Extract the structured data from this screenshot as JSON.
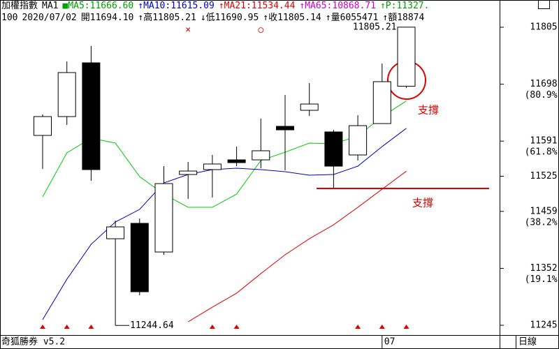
{
  "header": {
    "lines": [
      [
        {
          "text": "加權指數",
          "color": "#000000"
        },
        {
          "text": "MA1",
          "color": "#000000"
        },
        {
          "text": "■MA5:11666.60",
          "color": "#00a000"
        },
        {
          "text": "↑MA10:11615.09",
          "color": "#0000cc"
        },
        {
          "text": "↑MA21:11534.44",
          "color": "#e00000"
        },
        {
          "text": "↑MA65:10868.71",
          "color": "#cc00cc"
        },
        {
          "text": "↑P:11327.",
          "color": "#00a000"
        }
      ],
      [
        {
          "text": "100",
          "color": "#000000"
        },
        {
          "text": "2020/07/02",
          "color": "#000000"
        },
        {
          "text": "開11694.10",
          "color": "#000000"
        },
        {
          "text": "↑高11805.21",
          "color": "#000000"
        },
        {
          "text": "↓低11690.95",
          "color": "#000000"
        },
        {
          "text": "↑收11805.14",
          "color": "#000000"
        },
        {
          "text": "↑量6055471",
          "color": "#000000"
        },
        {
          "text": "↑額18874",
          "color": "#000000"
        }
      ]
    ]
  },
  "chart_data": {
    "type": "candlestick",
    "categories": [
      null,
      null,
      null,
      null,
      null,
      null,
      null,
      null,
      null,
      null,
      null,
      null,
      null,
      null,
      "07",
      null
    ],
    "open": [
      11601.7,
      11637.1,
      11738.1,
      11407.6,
      11436.5,
      11382.7,
      11528.3,
      11537.5,
      11555.8,
      11555.8,
      11618.8,
      11648.9,
      11608.3,
      11565.0,
      11624.0,
      11694.1
    ],
    "high": [
      11641.1,
      11740.7,
      11769.6,
      11441.7,
      11445.6,
      11544.0,
      11551.9,
      11565.0,
      11580.7,
      11633.2,
      11677.8,
      11700.1,
      11612.2,
      11639.7,
      11736.8,
      11805.21
    ],
    "low": [
      11538.8,
      11621.4,
      11516.5,
      11244.64,
      11301.4,
      11377.5,
      11482.4,
      11485.0,
      11544.0,
      11540.1,
      11536.1,
      11638.4,
      11502.0,
      11554.5,
      11624.0,
      11690.95
    ],
    "close": [
      11637.1,
      11719.8,
      11537.5,
      11429.9,
      11308.0,
      11511.2,
      11534.8,
      11548.0,
      11550.6,
      11572.9,
      11612.2,
      11660.7,
      11544.0,
      11620.1,
      11702.7,
      11805.14
    ],
    "up_color": "#ffffff",
    "down_color": "#000000",
    "ma": [
      {
        "color": "#00cc00",
        "values": [
          11486.3,
          11569.0,
          11596.5,
          11587.3,
          11524.3,
          11491.5,
          11466.6,
          11466.6,
          11491.5,
          11554.5,
          11570.2,
          11587.3,
          11586.0,
          11600.4,
          11637.1,
          11666.6
        ]
      },
      {
        "color": "#0000cc",
        "values": [
          11255.5,
          11331.5,
          11397.1,
          11439.1,
          11462.7,
          11512.5,
          11528.3,
          11537.5,
          11540.1,
          11537.5,
          11533.5,
          11527.0,
          11528.3,
          11544.0,
          11580.7,
          11615.09
        ]
      },
      {
        "color": "#e00000",
        "values": [
          null,
          null,
          null,
          null,
          null,
          null,
          11251.5,
          11279.1,
          11305.3,
          11342.0,
          11377.5,
          11407.6,
          11433.8,
          11466.6,
          11500.7,
          11534.44
        ]
      }
    ],
    "ylim": [
      11229.3,
      11816.8
    ],
    "yticks": [
      11805,
      11698,
      11591,
      11525,
      11459,
      11352,
      11245
    ],
    "fib_labels": [
      {
        "value": 11698,
        "label": "(80.9%)"
      },
      {
        "value": 11591,
        "label": "(61.8%)"
      },
      {
        "value": 11459,
        "label": "(38.2%)"
      },
      {
        "value": 11352,
        "label": "(19.1%)"
      }
    ],
    "support_level": 11502,
    "support_color": "#e00000",
    "signals": [
      0,
      1,
      2,
      7,
      8,
      13,
      14,
      15
    ],
    "signal_color": "#e00000",
    "top_marks": [
      {
        "index": 6,
        "symbol": "×"
      },
      {
        "index": 9,
        "symbol": "○"
      }
    ],
    "top_mark_color": "#e00000"
  },
  "annotations": [
    "支撐",
    "支撐"
  ],
  "footer": {
    "software": "奇狐勝券 v5.2",
    "period": "日線"
  }
}
